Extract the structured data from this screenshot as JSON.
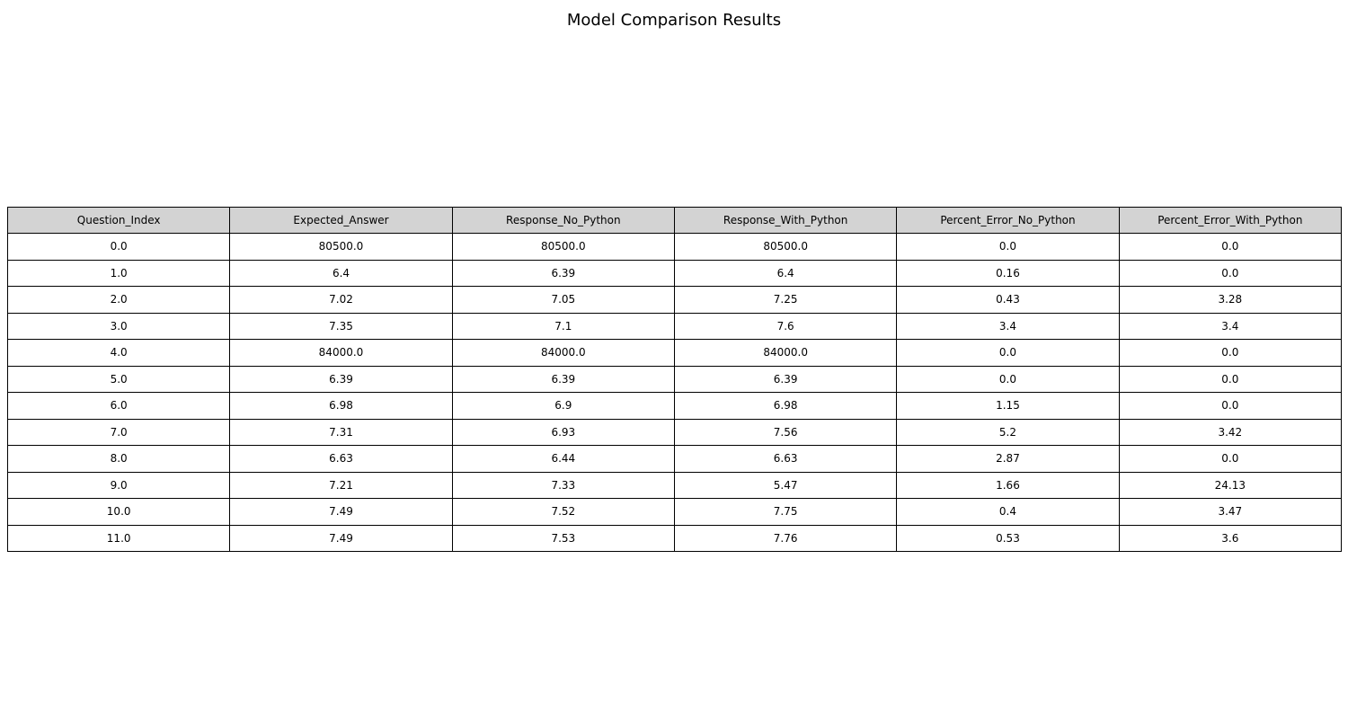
{
  "chart_data": {
    "type": "table",
    "title": "Model Comparison Results",
    "header_color": "#d3d3d3",
    "columns": [
      "Question_Index",
      "Expected_Answer",
      "Response_No_Python",
      "Response_With_Python",
      "Percent_Error_No_Python",
      "Percent_Error_With_Python"
    ],
    "rows": [
      [
        "0.0",
        "80500.0",
        "80500.0",
        "80500.0",
        "0.0",
        "0.0"
      ],
      [
        "1.0",
        "6.4",
        "6.39",
        "6.4",
        "0.16",
        "0.0"
      ],
      [
        "2.0",
        "7.02",
        "7.05",
        "7.25",
        "0.43",
        "3.28"
      ],
      [
        "3.0",
        "7.35",
        "7.1",
        "7.6",
        "3.4",
        "3.4"
      ],
      [
        "4.0",
        "84000.0",
        "84000.0",
        "84000.0",
        "0.0",
        "0.0"
      ],
      [
        "5.0",
        "6.39",
        "6.39",
        "6.39",
        "0.0",
        "0.0"
      ],
      [
        "6.0",
        "6.98",
        "6.9",
        "6.98",
        "1.15",
        "0.0"
      ],
      [
        "7.0",
        "7.31",
        "6.93",
        "7.56",
        "5.2",
        "3.42"
      ],
      [
        "8.0",
        "6.63",
        "6.44",
        "6.63",
        "2.87",
        "0.0"
      ],
      [
        "9.0",
        "7.21",
        "7.33",
        "5.47",
        "1.66",
        "24.13"
      ],
      [
        "10.0",
        "7.49",
        "7.52",
        "7.75",
        "0.4",
        "3.47"
      ],
      [
        "11.0",
        "7.49",
        "7.53",
        "7.76",
        "0.53",
        "3.6"
      ]
    ]
  }
}
